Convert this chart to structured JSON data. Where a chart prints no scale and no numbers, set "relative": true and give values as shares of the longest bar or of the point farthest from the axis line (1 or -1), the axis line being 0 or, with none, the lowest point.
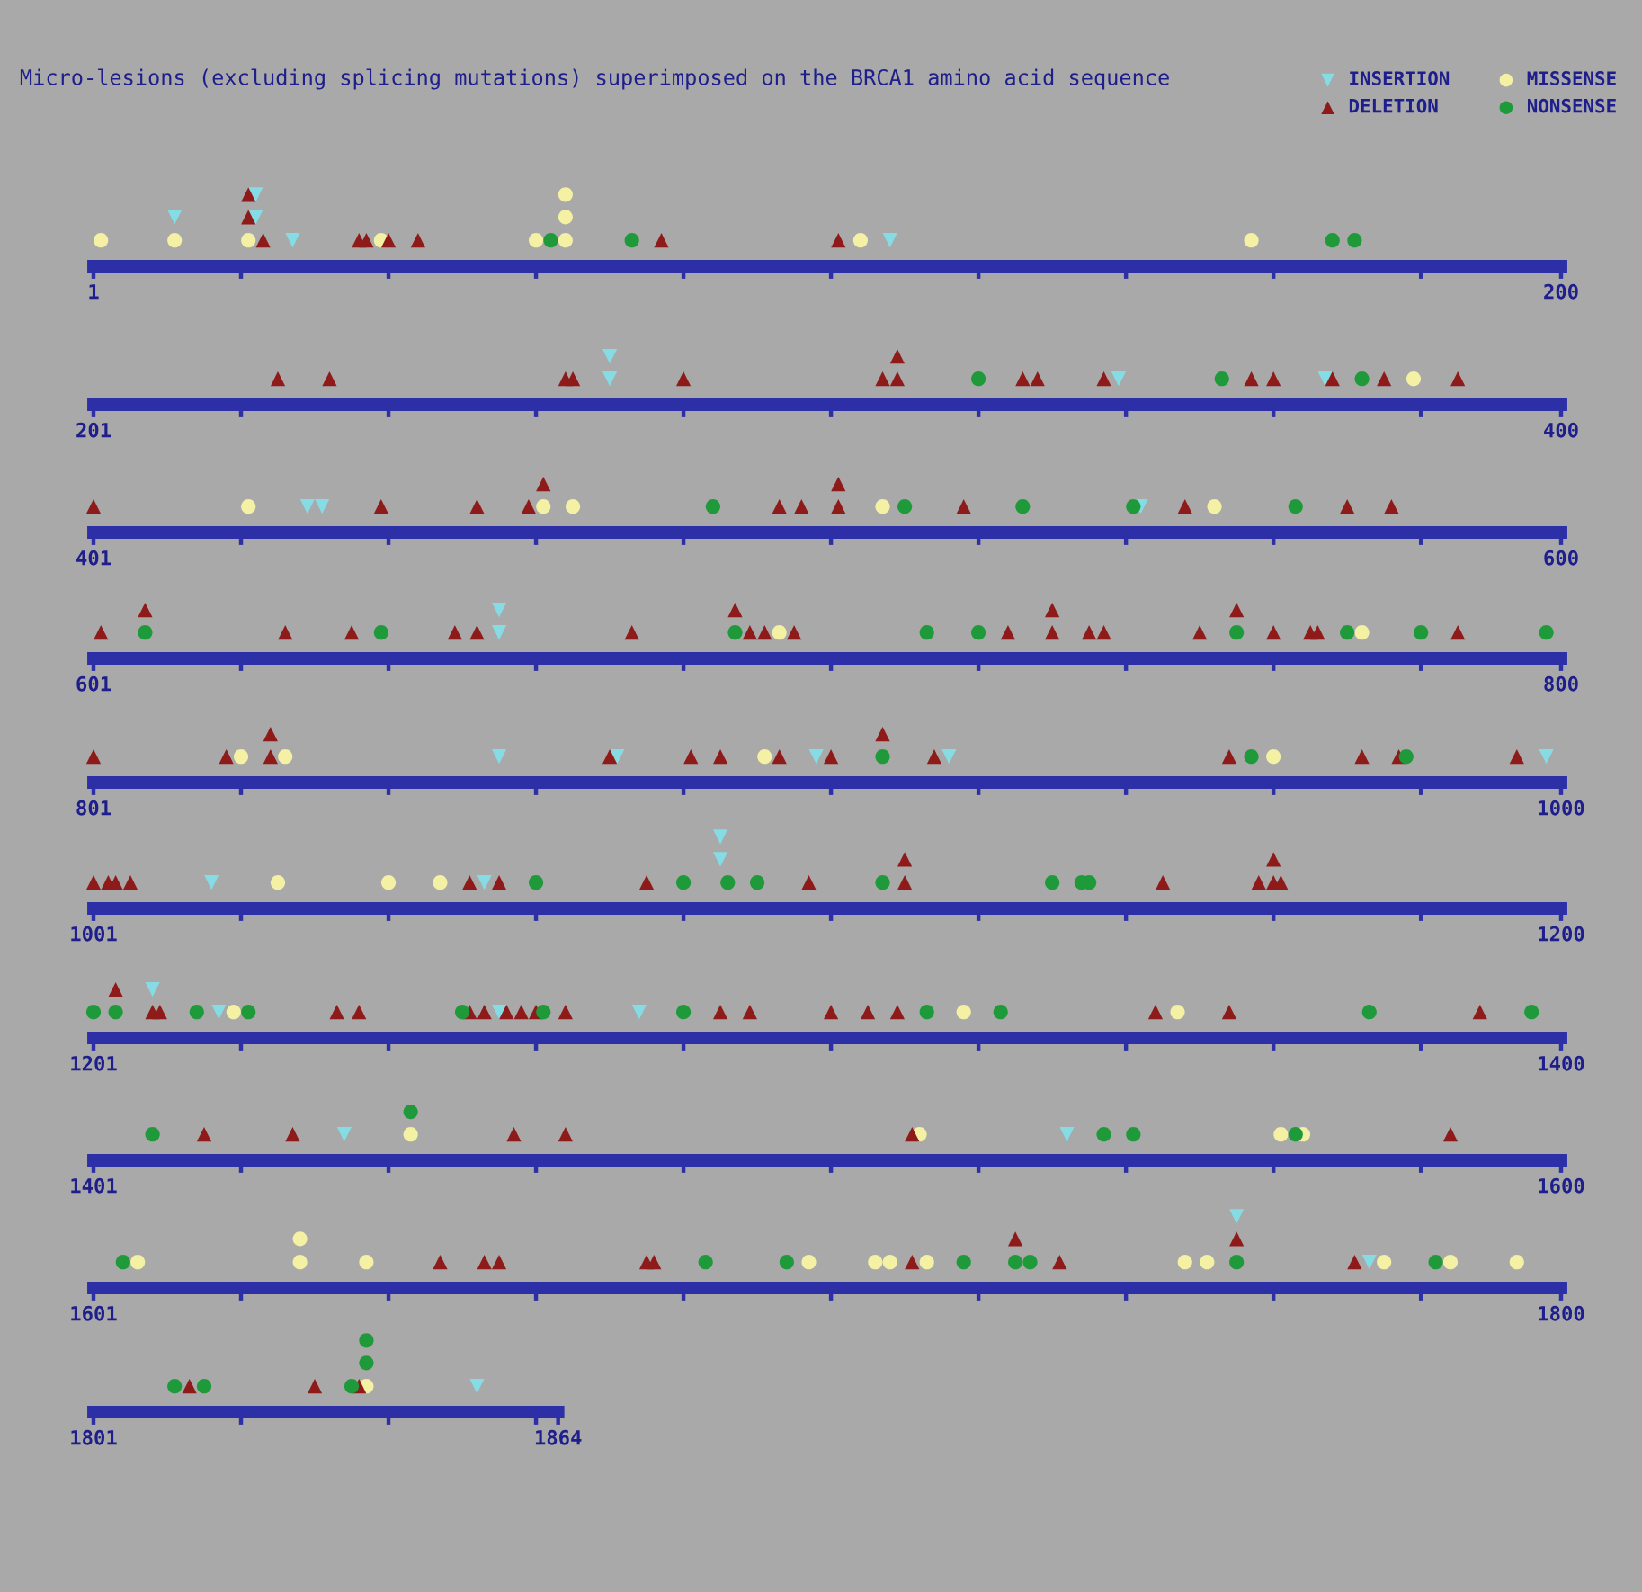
{
  "chart_data": [
    {
      "type": "scatter",
      "title": "Micro-lesions (excluding splicing mutations) superimposed on the BRCA1 amino acid sequence",
      "relative": true,
      "legend": "top right",
      "xlim": [
        1,
        200
      ],
      "xticks": [
        {
          "value": 1,
          "label": "1"
        },
        {
          "value": 21,
          "label": null
        },
        {
          "value": 41,
          "label": null
        },
        {
          "value": 61,
          "label": null
        },
        {
          "value": 81,
          "label": null
        },
        {
          "value": 101,
          "label": null
        },
        {
          "value": 121,
          "label": null
        },
        {
          "value": 141,
          "label": null
        },
        {
          "value": 161,
          "label": null
        },
        {
          "value": 181,
          "label": null
        },
        {
          "value": 200,
          "label": "200"
        }
      ],
      "series": [
        {
          "name": "INSERTION",
          "marker": "triangle_down",
          "color": "#86dce4",
          "x": [
            12,
            23,
            23,
            28,
            109
          ],
          "values": [
            0.67,
            0.67,
            1,
            0.33,
            0.33
          ]
        },
        {
          "name": "MISSENSE",
          "marker": "circle",
          "color": "#f4f0a4",
          "x": [
            2,
            12,
            22,
            40,
            61,
            65,
            65,
            65,
            105,
            158
          ],
          "values": [
            0.33,
            0.33,
            0.33,
            0.33,
            0.33,
            0.33,
            0.67,
            1,
            0.33,
            0.33
          ]
        },
        {
          "name": "DELETION",
          "marker": "triangle",
          "color": "#8e1a1a",
          "x": [
            22,
            22,
            24,
            37,
            38,
            41,
            45,
            78,
            102
          ],
          "values": [
            0.67,
            1,
            0.33,
            0.33,
            0.33,
            0.33,
            0.33,
            0.33,
            0.33
          ]
        },
        {
          "name": "NONSENSE",
          "marker": "circle",
          "color": "#1f9a3a",
          "x": [
            63,
            74,
            169,
            172
          ],
          "values": [
            0.33,
            0.33,
            0.33,
            0.33
          ]
        }
      ]
    },
    {
      "type": "scatter",
      "relative": true,
      "xlim": [
        201,
        400
      ],
      "xticks": [
        {
          "value": 201,
          "label": "201"
        },
        {
          "value": 221,
          "label": null
        },
        {
          "value": 241,
          "label": null
        },
        {
          "value": 261,
          "label": null
        },
        {
          "value": 281,
          "label": null
        },
        {
          "value": 301,
          "label": null
        },
        {
          "value": 321,
          "label": null
        },
        {
          "value": 341,
          "label": null
        },
        {
          "value": 361,
          "label": null
        },
        {
          "value": 381,
          "label": null
        },
        {
          "value": 400,
          "label": "400"
        }
      ],
      "series": [
        {
          "marker": "triangle_down",
          "color": "#86dce4",
          "x": [
            271,
            271,
            340,
            368
          ],
          "values": [
            0.5,
            1,
            0.5,
            0.5
          ]
        },
        {
          "marker": "circle",
          "color": "#f4f0a4",
          "x": [
            380
          ],
          "values": [
            0.5
          ]
        },
        {
          "marker": "triangle",
          "color": "#8e1a1a",
          "x": [
            226,
            233,
            265,
            266,
            281,
            308,
            310,
            310,
            327,
            329,
            338,
            358,
            361,
            369,
            376,
            386
          ],
          "values": [
            0.5,
            0.5,
            0.5,
            0.5,
            0.5,
            0.5,
            0.5,
            1,
            0.5,
            0.5,
            0.5,
            0.5,
            0.5,
            0.5,
            0.5,
            0.5
          ]
        },
        {
          "marker": "circle",
          "color": "#1f9a3a",
          "x": [
            321,
            354,
            373
          ],
          "values": [
            0.5,
            0.5,
            0.5
          ]
        }
      ]
    },
    {
      "type": "scatter",
      "relative": true,
      "xlim": [
        401,
        600
      ],
      "xticks": [
        {
          "value": 401,
          "label": "401"
        },
        {
          "value": 421,
          "label": null
        },
        {
          "value": 441,
          "label": null
        },
        {
          "value": 461,
          "label": null
        },
        {
          "value": 481,
          "label": null
        },
        {
          "value": 501,
          "label": null
        },
        {
          "value": 521,
          "label": null
        },
        {
          "value": 541,
          "label": null
        },
        {
          "value": 561,
          "label": null
        },
        {
          "value": 581,
          "label": null
        },
        {
          "value": 600,
          "label": "600"
        }
      ],
      "series": [
        {
          "marker": "triangle_down",
          "color": "#86dce4",
          "x": [
            430,
            432,
            543
          ],
          "values": [
            0.5,
            0.5,
            0.5
          ]
        },
        {
          "marker": "circle",
          "color": "#f4f0a4",
          "x": [
            422,
            462,
            466,
            508,
            553
          ],
          "values": [
            0.5,
            0.5,
            0.5,
            0.5,
            0.5
          ]
        },
        {
          "marker": "triangle",
          "color": "#8e1a1a",
          "x": [
            401,
            440,
            453,
            460,
            462,
            494,
            497,
            502,
            502,
            519,
            549,
            571,
            577
          ],
          "values": [
            0.5,
            0.5,
            0.5,
            0.5,
            1,
            0.5,
            0.5,
            0.5,
            1,
            0.5,
            0.5,
            0.5,
            0.5
          ]
        },
        {
          "marker": "circle",
          "color": "#1f9a3a",
          "x": [
            485,
            511,
            527,
            542,
            564
          ],
          "values": [
            0.5,
            0.5,
            0.5,
            0.5,
            0.5
          ]
        }
      ]
    },
    {
      "type": "scatter",
      "relative": true,
      "xlim": [
        601,
        800
      ],
      "xticks": [
        {
          "value": 601,
          "label": "601"
        },
        {
          "value": 621,
          "label": null
        },
        {
          "value": 641,
          "label": null
        },
        {
          "value": 661,
          "label": null
        },
        {
          "value": 681,
          "label": null
        },
        {
          "value": 701,
          "label": null
        },
        {
          "value": 721,
          "label": null
        },
        {
          "value": 741,
          "label": null
        },
        {
          "value": 761,
          "label": null
        },
        {
          "value": 781,
          "label": null
        },
        {
          "value": 800,
          "label": "800"
        }
      ],
      "series": [
        {
          "marker": "triangle_down",
          "color": "#86dce4",
          "x": [
            656,
            656
          ],
          "values": [
            0.5,
            1
          ]
        },
        {
          "marker": "circle",
          "color": "#f4f0a4",
          "x": [
            694,
            773
          ],
          "values": [
            0.5,
            0.5
          ]
        },
        {
          "marker": "triangle",
          "color": "#8e1a1a",
          "x": [
            602,
            608,
            627,
            636,
            650,
            653,
            674,
            688,
            690,
            692,
            696,
            725,
            731,
            731,
            736,
            738,
            751,
            756,
            761,
            766,
            767,
            786
          ],
          "values": [
            0.5,
            1,
            0.5,
            0.5,
            0.5,
            0.5,
            0.5,
            1,
            0.5,
            0.5,
            0.5,
            0.5,
            0.5,
            1,
            0.5,
            0.5,
            0.5,
            1,
            0.5,
            0.5,
            0.5,
            0.5
          ]
        },
        {
          "marker": "circle",
          "color": "#1f9a3a",
          "x": [
            608,
            640,
            688,
            714,
            721,
            756,
            771,
            781,
            798
          ],
          "values": [
            0.5,
            0.5,
            0.5,
            0.5,
            0.5,
            0.5,
            0.5,
            0.5,
            0.5
          ]
        }
      ]
    },
    {
      "type": "scatter",
      "relative": true,
      "xlim": [
        801,
        1000
      ],
      "xticks": [
        {
          "value": 801,
          "label": "801"
        },
        {
          "value": 821,
          "label": null
        },
        {
          "value": 841,
          "label": null
        },
        {
          "value": 861,
          "label": null
        },
        {
          "value": 881,
          "label": null
        },
        {
          "value": 901,
          "label": null
        },
        {
          "value": 921,
          "label": null
        },
        {
          "value": 941,
          "label": null
        },
        {
          "value": 961,
          "label": null
        },
        {
          "value": 981,
          "label": null
        },
        {
          "value": 1000,
          "label": "1000"
        }
      ],
      "series": [
        {
          "marker": "triangle_down",
          "color": "#86dce4",
          "x": [
            856,
            872,
            899,
            917,
            998
          ],
          "values": [
            0.5,
            0.5,
            0.5,
            0.5,
            0.5
          ]
        },
        {
          "marker": "circle",
          "color": "#f4f0a4",
          "x": [
            821,
            827,
            892,
            961
          ],
          "values": [
            0.5,
            0.5,
            0.5,
            0.5
          ]
        },
        {
          "marker": "triangle",
          "color": "#8e1a1a",
          "x": [
            801,
            819,
            825,
            825,
            871,
            882,
            886,
            894,
            901,
            908,
            915,
            955,
            973,
            978,
            994
          ],
          "values": [
            0.5,
            0.5,
            0.5,
            1,
            0.5,
            0.5,
            0.5,
            0.5,
            0.5,
            1,
            0.5,
            0.5,
            0.5,
            0.5,
            0.5
          ]
        },
        {
          "marker": "circle",
          "color": "#1f9a3a",
          "x": [
            908,
            958,
            979
          ],
          "values": [
            0.5,
            0.5,
            0.5
          ]
        }
      ]
    },
    {
      "type": "scatter",
      "relative": true,
      "xlim": [
        1001,
        1200
      ],
      "xticks": [
        {
          "value": 1001,
          "label": "1001"
        },
        {
          "value": 1021,
          "label": null
        },
        {
          "value": 1041,
          "label": null
        },
        {
          "value": 1061,
          "label": null
        },
        {
          "value": 1081,
          "label": null
        },
        {
          "value": 1101,
          "label": null
        },
        {
          "value": 1121,
          "label": null
        },
        {
          "value": 1141,
          "label": null
        },
        {
          "value": 1161,
          "label": null
        },
        {
          "value": 1181,
          "label": null
        },
        {
          "value": 1200,
          "label": "1200"
        }
      ],
      "series": [
        {
          "marker": "triangle_down",
          "color": "#86dce4",
          "x": [
            1017,
            1054,
            1086,
            1086
          ],
          "values": [
            0.33,
            0.33,
            0.67,
            1
          ]
        },
        {
          "marker": "circle",
          "color": "#f4f0a4",
          "x": [
            1026,
            1041,
            1048
          ],
          "values": [
            0.33,
            0.33,
            0.33
          ]
        },
        {
          "marker": "triangle",
          "color": "#8e1a1a",
          "x": [
            1001,
            1003,
            1004,
            1006,
            1052,
            1056,
            1076,
            1098,
            1111,
            1111,
            1146,
            1159,
            1161,
            1161,
            1162
          ],
          "values": [
            0.33,
            0.33,
            0.33,
            0.33,
            0.33,
            0.33,
            0.33,
            0.33,
            0.33,
            0.67,
            0.33,
            0.33,
            0.33,
            0.67,
            0.33
          ]
        },
        {
          "marker": "circle",
          "color": "#1f9a3a",
          "x": [
            1061,
            1081,
            1087,
            1091,
            1108,
            1131,
            1135,
            1136
          ],
          "values": [
            0.33,
            0.33,
            0.33,
            0.33,
            0.33,
            0.33,
            0.33,
            0.33
          ]
        }
      ]
    },
    {
      "type": "scatter",
      "relative": true,
      "xlim": [
        1201,
        1400
      ],
      "xticks": [
        {
          "value": 1201,
          "label": "1201"
        },
        {
          "value": 1221,
          "label": null
        },
        {
          "value": 1241,
          "label": null
        },
        {
          "value": 1261,
          "label": null
        },
        {
          "value": 1281,
          "label": null
        },
        {
          "value": 1301,
          "label": null
        },
        {
          "value": 1321,
          "label": null
        },
        {
          "value": 1341,
          "label": null
        },
        {
          "value": 1361,
          "label": null
        },
        {
          "value": 1381,
          "label": null
        },
        {
          "value": 1400,
          "label": "1400"
        }
      ],
      "series": [
        {
          "marker": "triangle_down",
          "color": "#86dce4",
          "x": [
            1209,
            1218,
            1256,
            1275
          ],
          "values": [
            1,
            0.5,
            0.5,
            0.5
          ]
        },
        {
          "marker": "circle",
          "color": "#f4f0a4",
          "x": [
            1220,
            1319,
            1348
          ],
          "values": [
            0.5,
            0.5,
            0.5
          ]
        },
        {
          "marker": "triangle",
          "color": "#8e1a1a",
          "x": [
            1204,
            1209,
            1210,
            1234,
            1237,
            1252,
            1254,
            1257,
            1259,
            1261,
            1265,
            1286,
            1290,
            1301,
            1306,
            1310,
            1345,
            1355,
            1389
          ],
          "values": [
            1,
            0.5,
            0.5,
            0.5,
            0.5,
            0.5,
            0.5,
            0.5,
            0.5,
            0.5,
            0.5,
            0.5,
            0.5,
            0.5,
            0.5,
            0.5,
            0.5,
            0.5,
            0.5
          ]
        },
        {
          "marker": "circle",
          "color": "#1f9a3a",
          "x": [
            1201,
            1204,
            1215,
            1222,
            1251,
            1262,
            1281,
            1314,
            1324,
            1374,
            1396
          ],
          "values": [
            0.5,
            0.5,
            0.5,
            0.5,
            0.5,
            0.5,
            0.5,
            0.5,
            0.5,
            0.5,
            0.5
          ]
        }
      ]
    },
    {
      "type": "scatter",
      "relative": true,
      "xlim": [
        1401,
        1600
      ],
      "xticks": [
        {
          "value": 1401,
          "label": "1401"
        },
        {
          "value": 1421,
          "label": null
        },
        {
          "value": 1441,
          "label": null
        },
        {
          "value": 1461,
          "label": null
        },
        {
          "value": 1481,
          "label": null
        },
        {
          "value": 1501,
          "label": null
        },
        {
          "value": 1521,
          "label": null
        },
        {
          "value": 1541,
          "label": null
        },
        {
          "value": 1561,
          "label": null
        },
        {
          "value": 1581,
          "label": null
        },
        {
          "value": 1600,
          "label": "1600"
        }
      ],
      "series": [
        {
          "marker": "triangle_down",
          "color": "#86dce4",
          "x": [
            1435,
            1533
          ],
          "values": [
            0.5,
            0.5
          ]
        },
        {
          "marker": "circle",
          "color": "#f4f0a4",
          "x": [
            1444,
            1513,
            1562,
            1565
          ],
          "values": [
            0.5,
            0.5,
            0.5,
            0.5
          ]
        },
        {
          "marker": "triangle",
          "color": "#8e1a1a",
          "x": [
            1416,
            1428,
            1458,
            1465,
            1512,
            1585
          ],
          "values": [
            0.5,
            0.5,
            0.5,
            0.5,
            0.5,
            0.5
          ]
        },
        {
          "marker": "circle",
          "color": "#1f9a3a",
          "x": [
            1409,
            1444,
            1538,
            1542,
            1564
          ],
          "values": [
            0.5,
            1,
            0.5,
            0.5,
            0.5
          ]
        }
      ]
    },
    {
      "type": "scatter",
      "relative": true,
      "xlim": [
        1601,
        1800
      ],
      "xticks": [
        {
          "value": 1601,
          "label": "1601"
        },
        {
          "value": 1621,
          "label": null
        },
        {
          "value": 1641,
          "label": null
        },
        {
          "value": 1661,
          "label": null
        },
        {
          "value": 1681,
          "label": null
        },
        {
          "value": 1701,
          "label": null
        },
        {
          "value": 1721,
          "label": null
        },
        {
          "value": 1741,
          "label": null
        },
        {
          "value": 1761,
          "label": null
        },
        {
          "value": 1781,
          "label": null
        },
        {
          "value": 1800,
          "label": "1800"
        }
      ],
      "series": [
        {
          "marker": "triangle_down",
          "color": "#86dce4",
          "x": [
            1756,
            1774
          ],
          "values": [
            1,
            0.33
          ]
        },
        {
          "marker": "circle",
          "color": "#f4f0a4",
          "x": [
            1607,
            1629,
            1629,
            1638,
            1698,
            1707,
            1709,
            1714,
            1749,
            1752,
            1776,
            1785,
            1794
          ],
          "values": [
            0.33,
            0.33,
            0.67,
            0.33,
            0.33,
            0.33,
            0.33,
            0.33,
            0.33,
            0.33,
            0.33,
            0.33,
            0.33
          ]
        },
        {
          "marker": "triangle",
          "color": "#8e1a1a",
          "x": [
            1648,
            1654,
            1656,
            1676,
            1677,
            1712,
            1726,
            1732,
            1756,
            1772
          ],
          "values": [
            0.33,
            0.33,
            0.33,
            0.33,
            0.33,
            0.33,
            0.67,
            0.33,
            0.67,
            0.33
          ]
        },
        {
          "marker": "circle",
          "color": "#1f9a3a",
          "x": [
            1605,
            1684,
            1695,
            1719,
            1726,
            1728,
            1756,
            1783
          ],
          "values": [
            0.33,
            0.33,
            0.33,
            0.33,
            0.33,
            0.33,
            0.33,
            0.33
          ]
        }
      ]
    },
    {
      "type": "scatter",
      "relative": true,
      "xlim": [
        1801,
        1864
      ],
      "xticks": [
        {
          "value": 1801,
          "label": "1801"
        },
        {
          "value": 1821,
          "label": null
        },
        {
          "value": 1841,
          "label": null
        },
        {
          "value": 1861,
          "label": null
        },
        {
          "value": 1864,
          "label": "1864"
        }
      ],
      "series": [
        {
          "marker": "triangle_down",
          "color": "#86dce4",
          "x": [
            1853
          ],
          "values": [
            0.33
          ]
        },
        {
          "marker": "circle",
          "color": "#f4f0a4",
          "x": [
            1838
          ],
          "values": [
            0.33
          ]
        },
        {
          "marker": "triangle",
          "color": "#8e1a1a",
          "x": [
            1814,
            1831,
            1837
          ],
          "values": [
            0.33,
            0.33,
            0.33
          ]
        },
        {
          "marker": "circle",
          "color": "#1f9a3a",
          "x": [
            1812,
            1816,
            1836,
            1838,
            1838
          ],
          "values": [
            0.33,
            0.33,
            0.33,
            0.67,
            1
          ]
        }
      ]
    }
  ]
}
